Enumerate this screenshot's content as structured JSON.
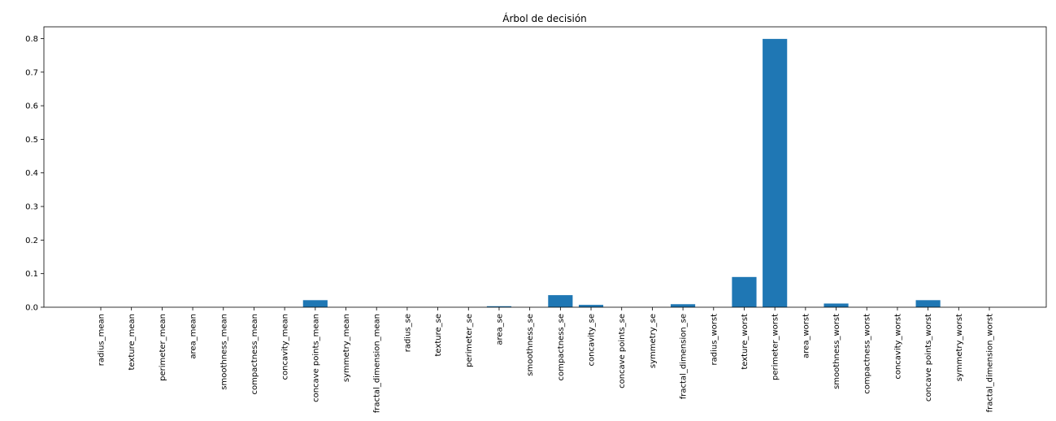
{
  "chart_data": {
    "type": "bar",
    "title": "Árbol de decisión",
    "xlabel": "",
    "ylabel": "",
    "ylim": [
      0,
      0.835
    ],
    "yticks": [
      0.0,
      0.1,
      0.2,
      0.3,
      0.4,
      0.5,
      0.6,
      0.7,
      0.8
    ],
    "ytick_labels": [
      "0.0",
      "0.1",
      "0.2",
      "0.3",
      "0.4",
      "0.5",
      "0.6",
      "0.7",
      "0.8"
    ],
    "grid": false,
    "bar_color": "#1f77b4",
    "categories": [
      "radius_mean",
      "texture_mean",
      "perimeter_mean",
      "area_mean",
      "smoothness_mean",
      "compactness_mean",
      "concavity_mean",
      "concave points_mean",
      "symmetry_mean",
      "fractal_dimension_mean",
      "radius_se",
      "texture_se",
      "perimeter_se",
      "area_se",
      "smoothness_se",
      "compactness_se",
      "concavity_se",
      "concave points_se",
      "symmetry_se",
      "fractal_dimension_se",
      "radius_worst",
      "texture_worst",
      "perimeter_worst",
      "area_worst",
      "smoothness_worst",
      "compactness_worst",
      "concavity_worst",
      "concave points_worst",
      "symmetry_worst",
      "fractal_dimension_worst"
    ],
    "values": [
      0,
      0,
      0,
      0,
      0,
      0,
      0,
      0.021,
      0,
      0,
      0,
      0,
      0,
      0.003,
      0,
      0.036,
      0.007,
      0,
      0,
      0.009,
      0,
      0.09,
      0.799,
      0,
      0.011,
      0,
      0,
      0.021,
      0,
      0
    ]
  }
}
